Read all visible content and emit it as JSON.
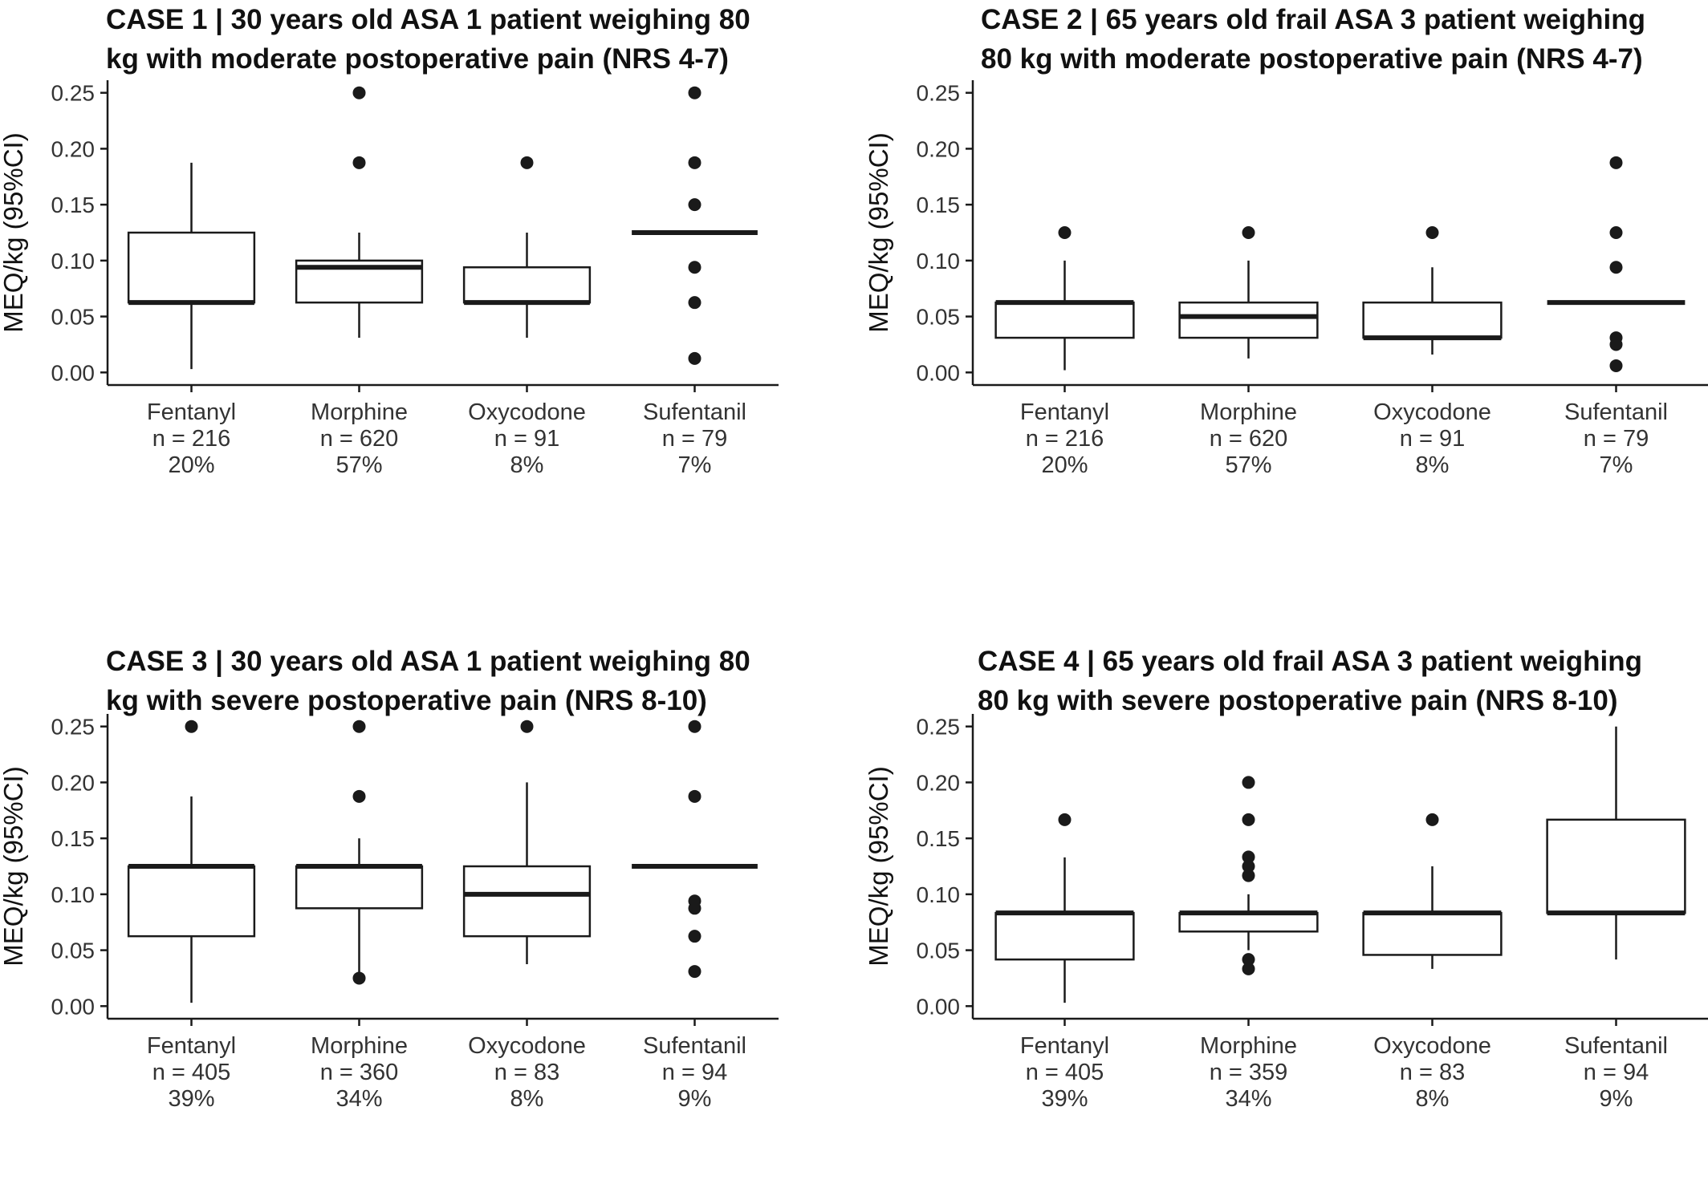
{
  "chart_data": [
    {
      "type": "box",
      "title_lines": [
        "CASE 1 | 30 years old ASA 1 patient weighing 80",
        "kg with moderate postoperative pain (NRS 4-7)"
      ],
      "ylabel": "MEQ/kg (95%CI)",
      "ylim": [
        0,
        0.25
      ],
      "yticks": [
        "0.00",
        "0.05",
        "0.10",
        "0.15",
        "0.20",
        "0.25"
      ],
      "grid": false,
      "groups": [
        {
          "name": "Fentanyl",
          "n_label": "n = 216",
          "pct_label": "20%",
          "whisker_low": 0.003,
          "q1": 0.0625,
          "median": 0.0625,
          "q3": 0.125,
          "whisker_high": 0.1875,
          "outliers": []
        },
        {
          "name": "Morphine",
          "n_label": "n = 620",
          "pct_label": "57%",
          "whisker_low": 0.031,
          "q1": 0.0625,
          "median": 0.094,
          "q3": 0.1,
          "whisker_high": 0.125,
          "outliers": [
            0.1875,
            0.25
          ]
        },
        {
          "name": "Oxycodone",
          "n_label": "n = 91",
          "pct_label": "8%",
          "whisker_low": 0.031,
          "q1": 0.0625,
          "median": 0.0625,
          "q3": 0.094,
          "whisker_high": 0.125,
          "outliers": [
            0.1875
          ]
        },
        {
          "name": "Sufentanil",
          "n_label": "n = 79",
          "pct_label": "7%",
          "whisker_low": 0.125,
          "q1": 0.125,
          "median": 0.125,
          "q3": 0.125,
          "whisker_high": 0.125,
          "outliers": [
            0.0125,
            0.0625,
            0.094,
            0.15,
            0.1875,
            0.25
          ]
        }
      ]
    },
    {
      "type": "box",
      "title_lines": [
        "CASE 2 | 65 years old frail ASA 3 patient weighing",
        "80 kg with moderate postoperative pain  (NRS 4-7)"
      ],
      "ylabel": "MEQ/kg (95%CI)",
      "ylim": [
        0,
        0.25
      ],
      "yticks": [
        "0.00",
        "0.05",
        "0.10",
        "0.15",
        "0.20",
        "0.25"
      ],
      "grid": false,
      "groups": [
        {
          "name": "Fentanyl",
          "n_label": "n = 216",
          "pct_label": "20%",
          "whisker_low": 0.002,
          "q1": 0.031,
          "median": 0.0625,
          "q3": 0.0625,
          "whisker_high": 0.1,
          "outliers": [
            0.125
          ]
        },
        {
          "name": "Morphine",
          "n_label": "n = 620",
          "pct_label": "57%",
          "whisker_low": 0.0125,
          "q1": 0.031,
          "median": 0.05,
          "q3": 0.0625,
          "whisker_high": 0.1,
          "outliers": [
            0.125
          ]
        },
        {
          "name": "Oxycodone",
          "n_label": "n = 91",
          "pct_label": "8%",
          "whisker_low": 0.016,
          "q1": 0.031,
          "median": 0.031,
          "q3": 0.0625,
          "whisker_high": 0.094,
          "outliers": [
            0.125
          ]
        },
        {
          "name": "Sufentanil",
          "n_label": "n = 79",
          "pct_label": "7%",
          "whisker_low": 0.0625,
          "q1": 0.0625,
          "median": 0.0625,
          "q3": 0.0625,
          "whisker_high": 0.0625,
          "outliers": [
            0.006,
            0.025,
            0.031,
            0.094,
            0.125,
            0.1875
          ]
        }
      ]
    },
    {
      "type": "box",
      "title_lines": [
        "CASE 3 | 30 years old ASA 1 patient weighing 80",
        "kg with severe postoperative pain (NRS 8-10)"
      ],
      "ylabel": "MEQ/kg (95%CI)",
      "ylim": [
        0,
        0.25
      ],
      "yticks": [
        "0.00",
        "0.05",
        "0.10",
        "0.15",
        "0.20",
        "0.25"
      ],
      "grid": false,
      "groups": [
        {
          "name": "Fentanyl",
          "n_label": "n = 405",
          "pct_label": "39%",
          "whisker_low": 0.003,
          "q1": 0.0625,
          "median": 0.125,
          "q3": 0.125,
          "whisker_high": 0.1875,
          "outliers": [
            0.25
          ]
        },
        {
          "name": "Morphine",
          "n_label": "n = 360",
          "pct_label": "34%",
          "whisker_low": 0.025,
          "q1": 0.0875,
          "median": 0.125,
          "q3": 0.125,
          "whisker_high": 0.15,
          "outliers": [
            0.025,
            0.1875,
            0.25
          ]
        },
        {
          "name": "Oxycodone",
          "n_label": "n = 83",
          "pct_label": "8%",
          "whisker_low": 0.0375,
          "q1": 0.0625,
          "median": 0.1,
          "q3": 0.125,
          "whisker_high": 0.2,
          "outliers": [
            0.25
          ]
        },
        {
          "name": "Sufentanil",
          "n_label": "n = 94",
          "pct_label": "9%",
          "whisker_low": 0.125,
          "q1": 0.125,
          "median": 0.125,
          "q3": 0.125,
          "whisker_high": 0.125,
          "outliers": [
            0.031,
            0.0625,
            0.0875,
            0.094,
            0.1875,
            0.25
          ]
        }
      ]
    },
    {
      "type": "box",
      "title_lines": [
        "CASE 4 | 65 years old frail ASA 3 patient weighing",
        "80 kg with severe postoperative pain (NRS 8-10)"
      ],
      "ylabel": "MEQ/kg (95%CI)",
      "ylim": [
        0,
        0.25
      ],
      "yticks": [
        "0.00",
        "0.05",
        "0.10",
        "0.15",
        "0.20",
        "0.25"
      ],
      "grid": false,
      "groups": [
        {
          "name": "Fentanyl",
          "n_label": "n = 405",
          "pct_label": "39%",
          "whisker_low": 0.003,
          "q1": 0.0417,
          "median": 0.0833,
          "q3": 0.0833,
          "whisker_high": 0.133,
          "outliers": [
            0.1667
          ]
        },
        {
          "name": "Morphine",
          "n_label": "n = 359",
          "pct_label": "34%",
          "whisker_low": 0.05,
          "q1": 0.0667,
          "median": 0.0833,
          "q3": 0.0833,
          "whisker_high": 0.1,
          "outliers": [
            0.0333,
            0.0417,
            0.1167,
            0.125,
            0.1333,
            0.1667,
            0.2
          ]
        },
        {
          "name": "Oxycodone",
          "n_label": "n = 83",
          "pct_label": "8%",
          "whisker_low": 0.0333,
          "q1": 0.0458,
          "median": 0.0833,
          "q3": 0.0833,
          "whisker_high": 0.125,
          "outliers": [
            0.1667
          ]
        },
        {
          "name": "Sufentanil",
          "n_label": "n = 94",
          "pct_label": "9%",
          "whisker_low": 0.0417,
          "q1": 0.0833,
          "median": 0.0833,
          "q3": 0.1667,
          "whisker_high": 0.25,
          "outliers": []
        }
      ]
    }
  ]
}
